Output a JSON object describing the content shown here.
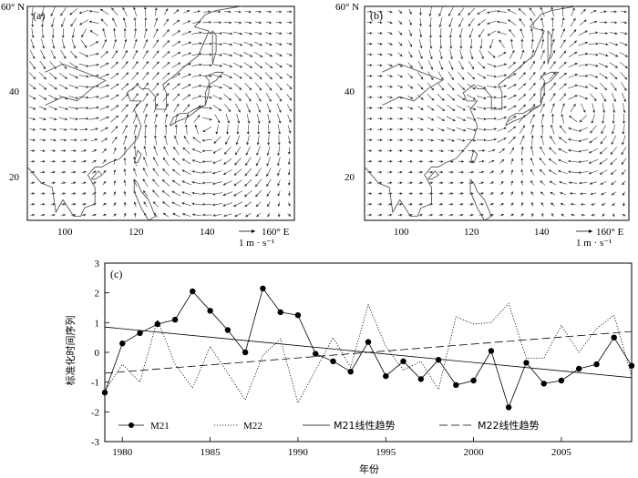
{
  "maps": [
    {
      "panel_label": "(a)",
      "lat_ticks": [
        "60° N",
        "40",
        "20"
      ],
      "lon_ticks": [
        "100",
        "120",
        "140",
        "160° E"
      ],
      "scale_label": "1 m · s⁻¹",
      "vortices": [
        {
          "lon": 140,
          "lat": 31,
          "strength": 1.3,
          "sense": "anticyclonic"
        },
        {
          "lon": 108,
          "lat": 52,
          "strength": 0.6,
          "sense": "cyclonic"
        }
      ]
    },
    {
      "panel_label": "(b)",
      "lat_ticks": [
        "60° N",
        "40",
        "20"
      ],
      "lon_ticks": [
        "100",
        "120",
        "140",
        "160° E"
      ],
      "scale_label": "1 m · s⁻¹",
      "vortices": [
        {
          "lon": 128,
          "lat": 50,
          "strength": 1.2,
          "sense": "cyclonic"
        },
        {
          "lon": 150,
          "lat": 35,
          "strength": 0.6,
          "sense": "anticyclonic"
        }
      ]
    }
  ],
  "chart_data": {
    "type": "line",
    "panel_label": "(c)",
    "xlabel": "年份",
    "ylabel": "标准化时间序列",
    "xlim": [
      1979,
      2009
    ],
    "ylim": [
      -3,
      3
    ],
    "x_ticks": [
      1980,
      1985,
      1990,
      1995,
      2000,
      2005
    ],
    "y_ticks": [
      3,
      2,
      1,
      0,
      -1,
      -2,
      -3
    ],
    "x": [
      1979,
      1980,
      1981,
      1982,
      1983,
      1984,
      1985,
      1986,
      1987,
      1988,
      1989,
      1990,
      1991,
      1992,
      1993,
      1994,
      1995,
      1996,
      1997,
      1998,
      1999,
      2000,
      2001,
      2002,
      2003,
      2004,
      2005,
      2006,
      2007,
      2008,
      2009
    ],
    "series": [
      {
        "name": "M21",
        "style": "solid-dots",
        "values": [
          -1.35,
          0.3,
          0.65,
          0.95,
          1.1,
          2.05,
          1.4,
          0.75,
          0.0,
          2.15,
          1.35,
          1.25,
          -0.05,
          -0.3,
          -0.65,
          0.35,
          -0.8,
          -0.3,
          -0.9,
          -0.25,
          -1.1,
          -0.95,
          0.05,
          -1.85,
          -0.35,
          -1.05,
          -0.95,
          -0.55,
          -0.4,
          0.5,
          -0.45
        ]
      },
      {
        "name": "M22",
        "style": "dotted",
        "values": [
          -1.3,
          -0.4,
          -1.0,
          1.1,
          -0.4,
          -1.2,
          0.2,
          -0.7,
          -1.6,
          -0.1,
          0.45,
          -1.7,
          -0.6,
          0.5,
          -0.5,
          1.6,
          0.2,
          -0.6,
          -0.3,
          -1.25,
          1.2,
          0.95,
          1.0,
          1.65,
          -0.2,
          -0.2,
          0.9,
          0.0,
          0.8,
          1.25,
          -0.8
        ]
      },
      {
        "name": "M21线性趋势",
        "style": "solid-line",
        "trend": [
          [
            1979,
            0.85
          ],
          [
            2009,
            -0.85
          ]
        ]
      },
      {
        "name": "M22线性趋势",
        "style": "dashed",
        "trend": [
          [
            1979,
            -0.7
          ],
          [
            2009,
            0.7
          ]
        ]
      }
    ],
    "legend_position": "bottom"
  },
  "colors": {
    "ink": "#000000",
    "map_ink": "#333333"
  }
}
